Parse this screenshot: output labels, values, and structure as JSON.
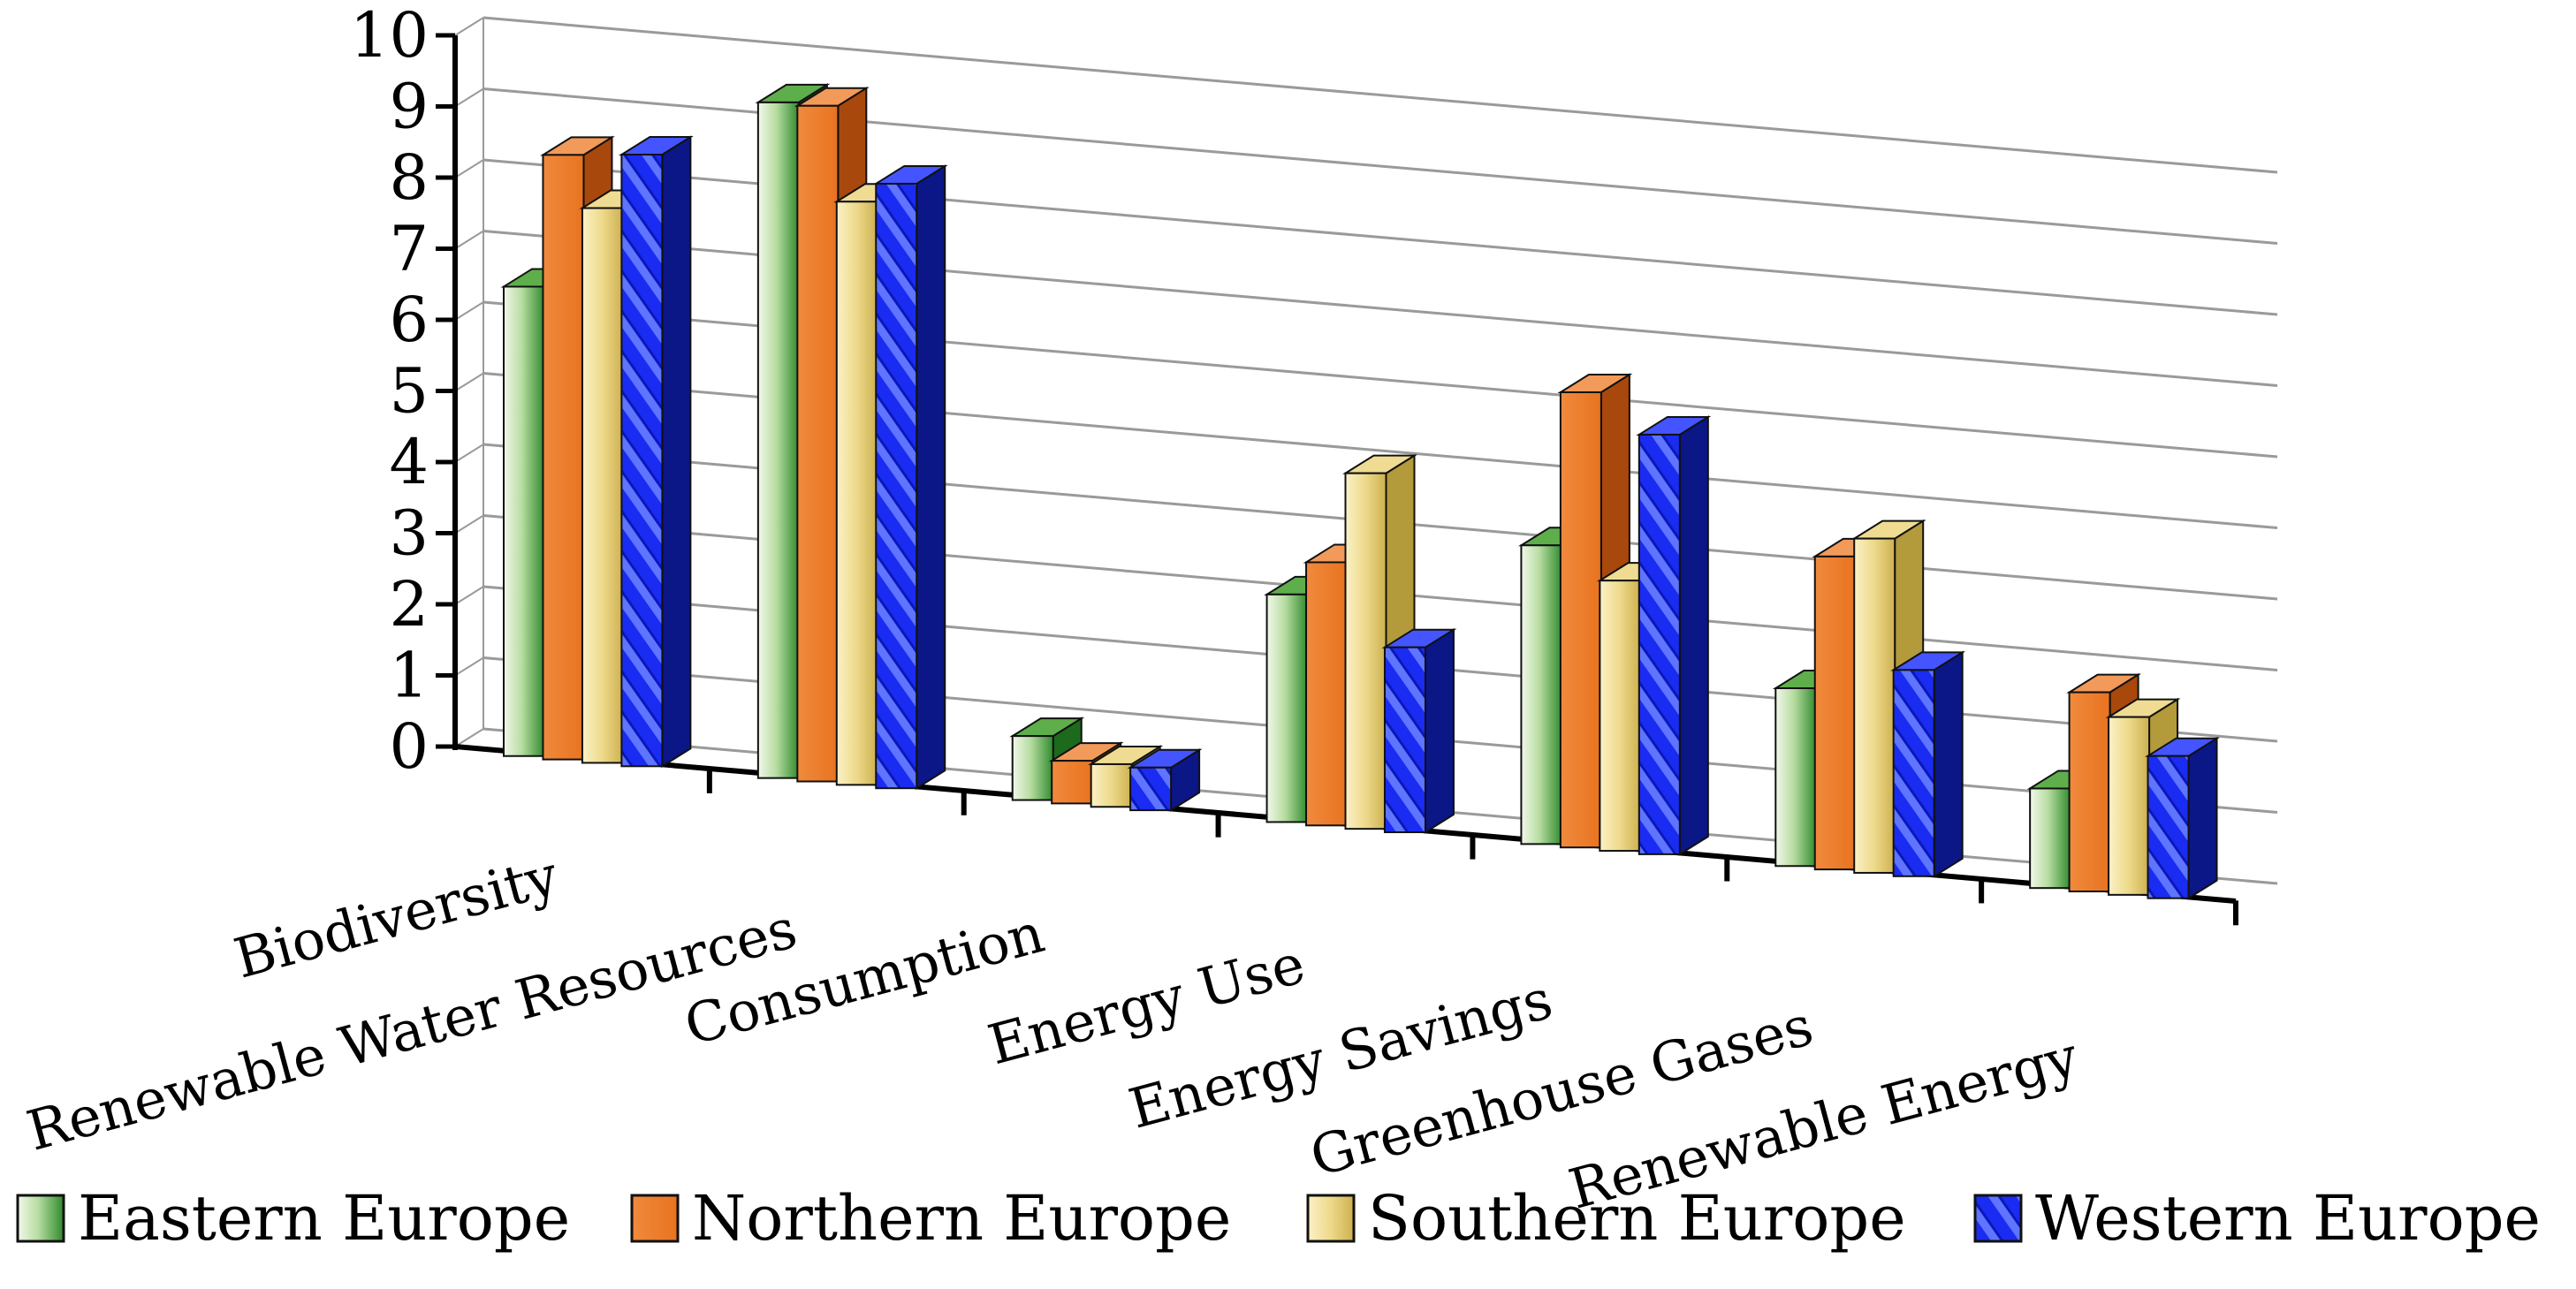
{
  "chart_data": {
    "type": "bar",
    "title": "",
    "xlabel": "",
    "ylabel": "",
    "ylim": [
      0,
      10
    ],
    "y_ticks": [
      "0",
      "1",
      "2",
      "3",
      "4",
      "5",
      "6",
      "7",
      "8",
      "9",
      "10"
    ],
    "grid": true,
    "legend_position": "bottom",
    "categories": [
      "Biodiversity",
      "Renewable Water Resources",
      "Consumption",
      "Energy Use",
      "Energy Savings",
      "Greenhouse Gases",
      "Renewable Energy"
    ],
    "series": [
      {
        "name": "Eastern Europe",
        "color": "#3f9a3a",
        "values": [
          6.6,
          9.5,
          0.9,
          3.2,
          4.2,
          2.5,
          1.4
        ]
      },
      {
        "name": "Northern Europe",
        "color": "#ee7a2b",
        "values": [
          8.5,
          9.5,
          0.6,
          3.7,
          6.4,
          4.4,
          2.8
        ]
      },
      {
        "name": "Southern Europe",
        "color": "#e7cf72",
        "values": [
          7.8,
          8.2,
          0.6,
          5.0,
          3.8,
          4.7,
          2.5
        ]
      },
      {
        "name": "Western Europe",
        "color": "#1a2cf2",
        "values": [
          8.6,
          8.5,
          0.6,
          2.6,
          5.9,
          2.9,
          2.0
        ]
      }
    ]
  }
}
